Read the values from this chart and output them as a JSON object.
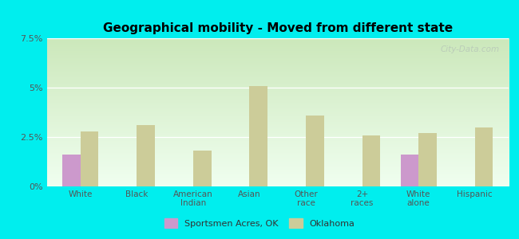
{
  "title": "Geographical mobility - Moved from different state",
  "categories": [
    "White",
    "Black",
    "American\nIndian",
    "Asian",
    "Other\nrace",
    "2+\nraces",
    "White\nalone",
    "Hispanic"
  ],
  "sportsmen_values": [
    1.6,
    0.0,
    0.0,
    0.0,
    0.0,
    0.0,
    1.6,
    0.0
  ],
  "oklahoma_values": [
    2.8,
    3.1,
    1.8,
    5.1,
    3.6,
    2.6,
    2.7,
    3.0
  ],
  "sportsmen_color": "#cc99cc",
  "oklahoma_color": "#cccc99",
  "background_color": "#00eeee",
  "grad_top_color": "#cce8bb",
  "grad_bottom_color": "#f0fff0",
  "ylim": [
    0,
    7.5
  ],
  "yticks": [
    0,
    2.5,
    5.0,
    7.5
  ],
  "ytick_labels": [
    "0%",
    "2.5%",
    "5%",
    "7.5%"
  ],
  "legend_label_1": "Sportsmen Acres, OK",
  "legend_label_2": "Oklahoma",
  "bar_width": 0.32,
  "watermark": "City-Data.com"
}
